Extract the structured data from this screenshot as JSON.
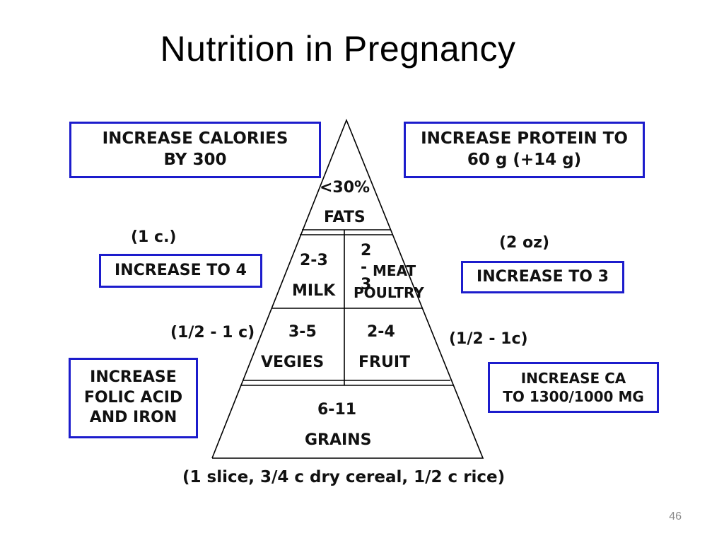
{
  "slide": {
    "title": "Nutrition in Pregnancy",
    "page_number": "46"
  },
  "boxes": {
    "calories": [
      "INCREASE CALORIES",
      "BY 300"
    ],
    "protein": [
      "INCREASE PROTEIN TO",
      "60 g  (+14 g)"
    ],
    "milk": "INCREASE TO 4",
    "meat": "INCREASE TO 3",
    "folic": [
      "INCREASE",
      "FOLIC ACID",
      "AND IRON"
    ],
    "calcium": [
      "INCREASE CA",
      "TO 1300/1000 MG"
    ]
  },
  "serving_notes": {
    "milk": "(1 c.)",
    "meat": "(2 oz)",
    "vegies": "(1/2 - 1 c)",
    "fruit": "(1/2 - 1c)",
    "grains": "(1 slice, 3/4 c dry cereal, 1/2 c rice)"
  },
  "pyramid": {
    "fats": {
      "amount": "<30%",
      "name": "FATS"
    },
    "milk": {
      "amount": "2-3",
      "name": "MILK"
    },
    "meat": {
      "amount": "2-3",
      "name_line1": "MEAT",
      "name_line2": "POULTRY"
    },
    "vegies": {
      "amount": "3-5",
      "name": "VEGIES"
    },
    "fruit": {
      "amount": "2-4",
      "name": "FRUIT"
    },
    "grains": {
      "amount": "6-11",
      "name": "GRAINS"
    }
  },
  "colors": {
    "box_border": "#1c1ccc",
    "text": "#111111",
    "page_number": "#8a8a8a"
  }
}
